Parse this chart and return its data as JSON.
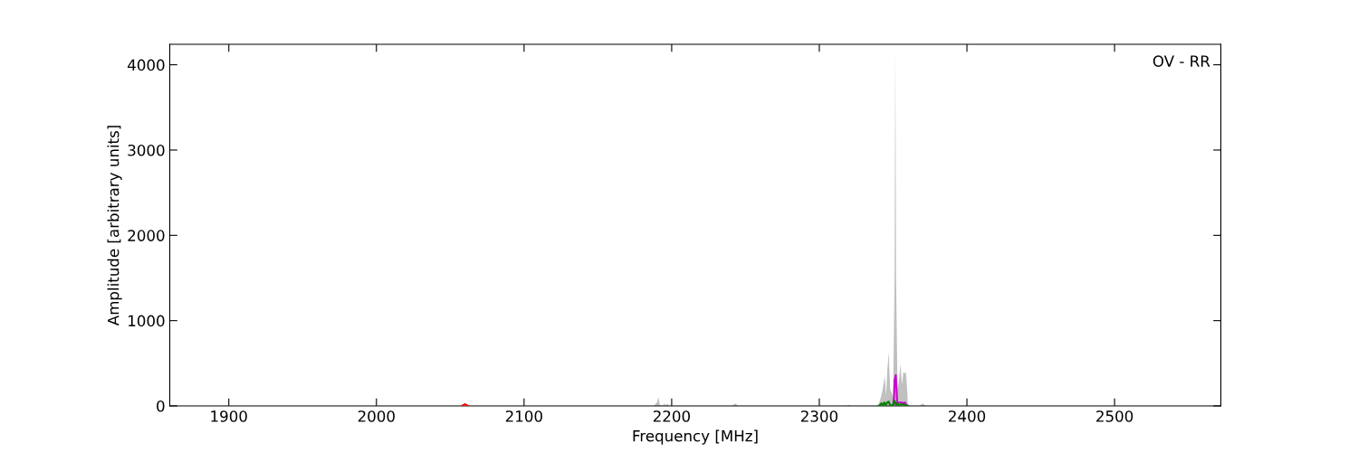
{
  "chart_data": {
    "type": "line",
    "xlabel": "Frequency [MHz]",
    "ylabel": "Amplitude [arbitrary units]",
    "annotations": [
      "OV - RR"
    ],
    "xlim": [
      1860,
      2572
    ],
    "ylim": [
      0,
      4240
    ],
    "xticks": [
      1900,
      2000,
      2100,
      2200,
      2300,
      2400,
      2500
    ],
    "yticks": [
      0,
      1000,
      2000,
      3000,
      4000
    ],
    "grid": false,
    "legend": false,
    "series": [
      {
        "type": "area",
        "color": "#c0c0c0",
        "x": [
          1860,
          2188,
          2190,
          2191,
          2192,
          2194,
          2195,
          2196,
          2197,
          2198,
          2199,
          2241,
          2243,
          2245,
          2318,
          2320,
          2322,
          2340,
          2341,
          2342,
          2343,
          2344.3,
          2345.3,
          2346,
          2347,
          2348,
          2349,
          2350,
          2351,
          2351.5,
          2352,
          2353,
          2354,
          2355,
          2356,
          2357,
          2358,
          2358.7,
          2359.5,
          2360,
          2361,
          2368,
          2370,
          2372,
          2572
        ],
        "values": [
          0,
          0,
          40,
          100,
          10,
          0,
          30,
          0,
          30,
          0,
          0,
          0,
          30,
          0,
          0,
          10,
          0,
          0,
          60,
          120,
          200,
          350,
          120,
          400,
          630,
          200,
          150,
          100,
          1500,
          4240,
          1500,
          200,
          300,
          490,
          250,
          400,
          380,
          400,
          200,
          30,
          0,
          0,
          30,
          0,
          0
        ]
      },
      {
        "color": "#cc00cc",
        "x": [
          2350,
          2350.6,
          2351,
          2351.8,
          2352.3,
          2352.8,
          2354,
          2355,
          2356,
          2357,
          2358,
          2359,
          2360
        ],
        "values": [
          0,
          100,
          300,
          360,
          200,
          30,
          40,
          40,
          40,
          30,
          40,
          10,
          0
        ]
      },
      {
        "color": "#008000",
        "x": [
          2340,
          2341,
          2342,
          2343,
          2344,
          2345,
          2346,
          2347,
          2348,
          2349,
          2350,
          2351,
          2352,
          2353,
          2354,
          2356,
          2358,
          2360
        ],
        "values": [
          0,
          10,
          30,
          10,
          40,
          10,
          40,
          50,
          10,
          0,
          20,
          60,
          10,
          30,
          10,
          20,
          10,
          0
        ]
      },
      {
        "color": "#ff0000",
        "x": [
          2058,
          2060,
          2062
        ],
        "values": [
          0,
          20,
          0
        ]
      }
    ]
  }
}
